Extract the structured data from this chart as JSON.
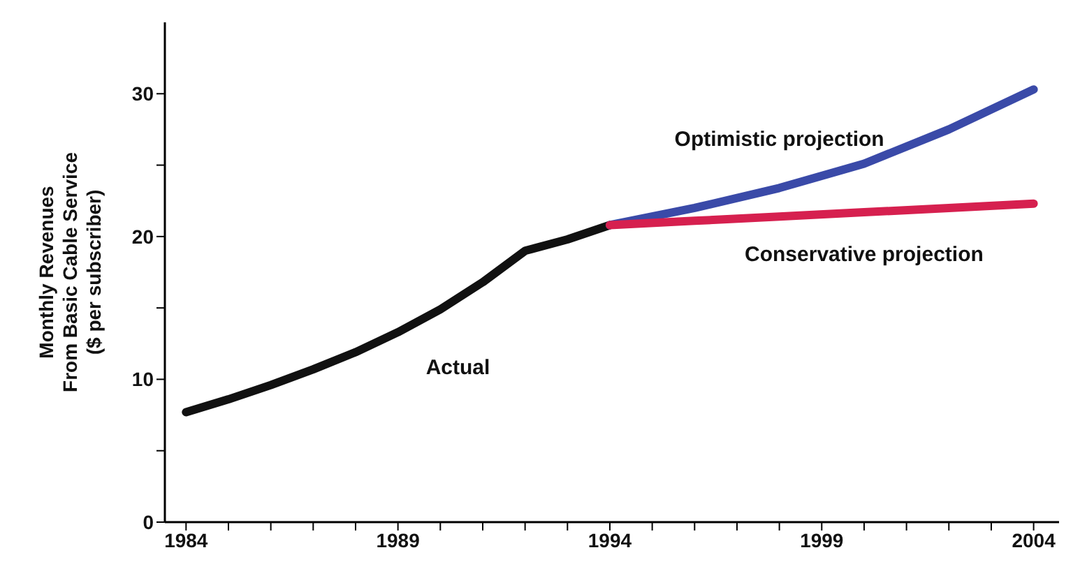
{
  "chart_data": {
    "type": "line",
    "ylabel": "Monthly Revenues\nFrom Basic Cable Service\n($ per subscriber)",
    "xlim": [
      1983.5,
      2004.6
    ],
    "ylim": [
      0,
      35
    ],
    "xticks": [
      1984,
      {
        "value": 1985,
        "label": null
      },
      {
        "value": 1986,
        "label": null
      },
      {
        "value": 1987,
        "label": null
      },
      {
        "value": 1988,
        "label": null
      },
      1989,
      {
        "value": 1990,
        "label": null
      },
      {
        "value": 1991,
        "label": null
      },
      {
        "value": 1992,
        "label": null
      },
      {
        "value": 1993,
        "label": null
      },
      1994,
      {
        "value": 1995,
        "label": null
      },
      {
        "value": 1996,
        "label": null
      },
      {
        "value": 1997,
        "label": null
      },
      {
        "value": 1998,
        "label": null
      },
      1999,
      {
        "value": 2000,
        "label": null
      },
      {
        "value": 2001,
        "label": null
      },
      {
        "value": 2002,
        "label": null
      },
      {
        "value": 2003,
        "label": null
      },
      2004
    ],
    "yticks": [
      0,
      {
        "value": 5,
        "label": null
      },
      10,
      {
        "value": 15,
        "label": null
      },
      20,
      {
        "value": 25,
        "label": null
      },
      30
    ],
    "grid": false,
    "legend": false,
    "marker": "none",
    "line_style": "solid",
    "series": [
      {
        "name": "Actual",
        "color": "#111111",
        "x": [
          1984,
          1985,
          1986,
          1987,
          1988,
          1989,
          1990,
          1991,
          1992,
          1993,
          1994
        ],
        "values": [
          7.7,
          8.6,
          9.6,
          10.7,
          11.9,
          13.3,
          14.9,
          16.8,
          19.0,
          19.8,
          20.8
        ]
      },
      {
        "name": "Optimistic projection",
        "color": "#3a4aa8",
        "x": [
          1994,
          1996,
          1998,
          2000,
          2002,
          2004
        ],
        "values": [
          20.8,
          22.0,
          23.4,
          25.1,
          27.5,
          30.3
        ]
      },
      {
        "name": "Conservative projection",
        "color": "#d6204f",
        "x": [
          1994,
          1996,
          1998,
          2000,
          2002,
          2004
        ],
        "values": [
          20.8,
          21.1,
          21.4,
          21.7,
          22.0,
          22.3
        ]
      }
    ]
  }
}
